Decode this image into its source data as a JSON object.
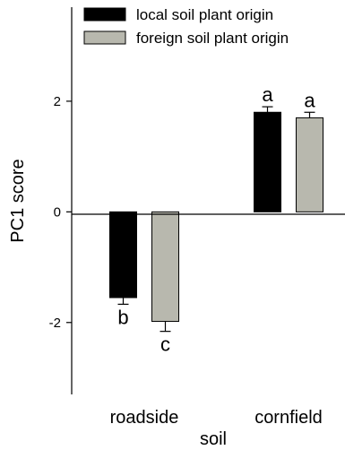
{
  "chart_data": {
    "type": "bar",
    "title": "",
    "xlabel": "soil",
    "ylabel": "PC1 score",
    "categories": [
      "roadside",
      "cornfield"
    ],
    "ylim": [
      -3.3,
      3.7
    ],
    "yticks": [
      -2,
      0,
      2
    ],
    "ytick_labels": [
      "-2",
      "0",
      "2"
    ],
    "grid": false,
    "legend_position": "top-left",
    "series": [
      {
        "name": "local soil plant origin",
        "color": "#000000",
        "values": [
          -1.55,
          1.8
        ],
        "errors": [
          0.12,
          0.1
        ],
        "significance": [
          "b",
          "a"
        ]
      },
      {
        "name": "foreign soil plant origin",
        "color": "#b8b8ae",
        "values": [
          -1.98,
          1.7
        ],
        "errors": [
          0.18,
          0.1
        ],
        "significance": [
          "c",
          "a"
        ]
      }
    ]
  }
}
